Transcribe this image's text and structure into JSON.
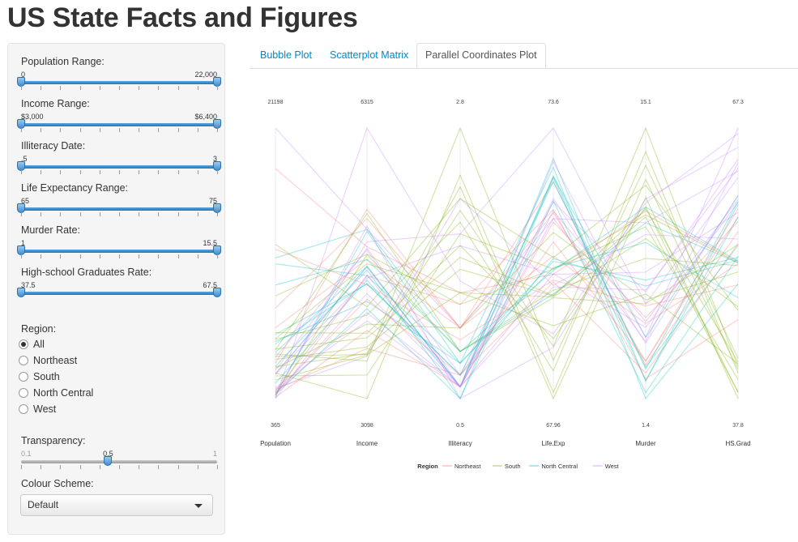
{
  "page_title": "US State Facts and Figures",
  "sidebar": {
    "sliders": [
      {
        "label": "Population Range:",
        "min": "0",
        "max": "22,000"
      },
      {
        "label": "Income Range:",
        "min": "$3,000",
        "max": "$6,400"
      },
      {
        "label": "Illiteracy Date:",
        "min": ".5",
        "max": "3"
      },
      {
        "label": "Life Expectancy Range:",
        "min": "65",
        "max": "75"
      },
      {
        "label": "Murder Rate:",
        "min": "1",
        "max": "15.5"
      },
      {
        "label": "High-school Graduates Rate:",
        "min": "37.5",
        "max": "67.5"
      }
    ],
    "region": {
      "label": "Region:",
      "options": [
        "All",
        "Northeast",
        "South",
        "North Central",
        "West"
      ],
      "selected": "All"
    },
    "transparency": {
      "label": "Transparency:",
      "min": "0.1",
      "value": "0.5",
      "max": "1",
      "fraction": 0.444
    },
    "colour_scheme": {
      "label": "Colour Scheme:",
      "value": "Default"
    }
  },
  "tabs": [
    "Bubble Plot",
    "Scatterplot Matrix",
    "Parallel Coordinates Plot"
  ],
  "active_tab": "Parallel Coordinates Plot",
  "chart_data": {
    "type": "parallel_coordinates",
    "axes": [
      {
        "name": "Population",
        "max": "21198",
        "min": "365"
      },
      {
        "name": "Income",
        "max": "6315",
        "min": "3098"
      },
      {
        "name": "Illiteracy",
        "max": "2.8",
        "min": "0.5"
      },
      {
        "name": "Life.Exp",
        "max": "73.6",
        "min": "67.96"
      },
      {
        "name": "Murder",
        "max": "15.1",
        "min": "1.4"
      },
      {
        "name": "HS.Grad",
        "max": "67.3",
        "min": "37.8"
      }
    ],
    "legend": {
      "title": "Region",
      "entries": [
        {
          "name": "Northeast",
          "color": "#f8766d"
        },
        {
          "name": "South",
          "color": "#7cae00"
        },
        {
          "name": "North Central",
          "color": "#00bfc4"
        },
        {
          "name": "West",
          "color": "#c77cff"
        }
      ]
    },
    "alpha": 0.35,
    "series": [
      {
        "region": "South",
        "values": [
          3615,
          3624,
          2.1,
          69.05,
          15.1,
          41.3
        ]
      },
      {
        "region": "West",
        "values": [
          365,
          6315,
          1.5,
          69.31,
          11.3,
          66.7
        ]
      },
      {
        "region": "West",
        "values": [
          2212,
          4530,
          1.8,
          70.55,
          7.8,
          58.1
        ]
      },
      {
        "region": "South",
        "values": [
          2110,
          3378,
          1.9,
          70.66,
          10.1,
          39.9
        ]
      },
      {
        "region": "West",
        "values": [
          21198,
          5114,
          1.1,
          71.71,
          10.3,
          62.6
        ]
      },
      {
        "region": "West",
        "values": [
          2541,
          4884,
          0.7,
          72.06,
          6.8,
          63.9
        ]
      },
      {
        "region": "Northeast",
        "values": [
          3100,
          5348,
          1.1,
          72.48,
          3.1,
          56.0
        ]
      },
      {
        "region": "South",
        "values": [
          579,
          4809,
          0.9,
          70.06,
          6.2,
          54.6
        ]
      },
      {
        "region": "South",
        "values": [
          8277,
          4815,
          1.3,
          70.66,
          10.7,
          52.6
        ]
      },
      {
        "region": "South",
        "values": [
          4931,
          4091,
          2.0,
          68.54,
          13.9,
          40.6
        ]
      },
      {
        "region": "West",
        "values": [
          868,
          4963,
          1.9,
          73.6,
          6.2,
          61.9
        ]
      },
      {
        "region": "West",
        "values": [
          813,
          4119,
          0.6,
          71.87,
          5.3,
          59.5
        ]
      },
      {
        "region": "North Central",
        "values": [
          11197,
          5107,
          0.9,
          70.14,
          10.3,
          52.6
        ]
      },
      {
        "region": "North Central",
        "values": [
          5313,
          4458,
          0.7,
          70.88,
          7.1,
          52.9
        ]
      },
      {
        "region": "North Central",
        "values": [
          2861,
          4628,
          0.5,
          72.56,
          2.3,
          59.0
        ]
      },
      {
        "region": "North Central",
        "values": [
          2280,
          4669,
          0.6,
          72.58,
          4.5,
          59.9
        ]
      },
      {
        "region": "South",
        "values": [
          3387,
          3712,
          1.6,
          70.1,
          10.6,
          38.5
        ]
      },
      {
        "region": "South",
        "values": [
          3806,
          3545,
          2.8,
          68.76,
          13.2,
          42.2
        ]
      },
      {
        "region": "Northeast",
        "values": [
          1058,
          3694,
          0.7,
          70.39,
          2.7,
          54.7
        ]
      },
      {
        "region": "South",
        "values": [
          4122,
          5299,
          0.9,
          70.22,
          8.5,
          52.3
        ]
      },
      {
        "region": "Northeast",
        "values": [
          5814,
          4755,
          1.1,
          71.83,
          3.3,
          58.5
        ]
      },
      {
        "region": "North Central",
        "values": [
          9111,
          4751,
          0.9,
          70.63,
          11.1,
          52.8
        ]
      },
      {
        "region": "North Central",
        "values": [
          3921,
          4675,
          0.6,
          72.96,
          2.3,
          57.6
        ]
      },
      {
        "region": "South",
        "values": [
          2341,
          3098,
          2.4,
          68.09,
          12.5,
          41.0
        ]
      },
      {
        "region": "North Central",
        "values": [
          4767,
          4254,
          0.8,
          70.69,
          9.3,
          48.8
        ]
      },
      {
        "region": "West",
        "values": [
          746,
          4347,
          0.6,
          70.56,
          5.0,
          59.2
        ]
      },
      {
        "region": "North Central",
        "values": [
          1544,
          4508,
          0.6,
          72.6,
          2.9,
          59.3
        ]
      },
      {
        "region": "West",
        "values": [
          590,
          5149,
          0.5,
          69.03,
          11.5,
          65.2
        ]
      },
      {
        "region": "Northeast",
        "values": [
          812,
          4281,
          0.7,
          71.23,
          3.3,
          57.6
        ]
      },
      {
        "region": "Northeast",
        "values": [
          7333,
          5237,
          1.1,
          70.93,
          5.2,
          52.5
        ]
      },
      {
        "region": "West",
        "values": [
          1144,
          3601,
          2.2,
          70.32,
          9.7,
          55.2
        ]
      },
      {
        "region": "Northeast",
        "values": [
          18076,
          4903,
          1.4,
          70.55,
          10.9,
          52.7
        ]
      },
      {
        "region": "South",
        "values": [
          5441,
          3875,
          1.8,
          69.21,
          11.1,
          38.5
        ]
      },
      {
        "region": "North Central",
        "values": [
          637,
          5087,
          0.8,
          72.78,
          1.4,
          50.3
        ]
      },
      {
        "region": "North Central",
        "values": [
          10735,
          4561,
          0.8,
          70.82,
          7.4,
          53.2
        ]
      },
      {
        "region": "South",
        "values": [
          2715,
          3983,
          1.1,
          71.42,
          6.4,
          51.6
        ]
      },
      {
        "region": "West",
        "values": [
          2284,
          4660,
          0.6,
          72.13,
          4.2,
          60.0
        ]
      },
      {
        "region": "Northeast",
        "values": [
          11860,
          4449,
          1.0,
          70.43,
          6.1,
          50.2
        ]
      },
      {
        "region": "Northeast",
        "values": [
          931,
          4558,
          1.3,
          71.9,
          2.4,
          46.4
        ]
      },
      {
        "region": "South",
        "values": [
          2816,
          3635,
          2.3,
          67.96,
          11.6,
          37.8
        ]
      },
      {
        "region": "North Central",
        "values": [
          681,
          4167,
          0.5,
          72.08,
          1.7,
          53.3
        ]
      },
      {
        "region": "South",
        "values": [
          4173,
          3821,
          1.7,
          70.11,
          11.0,
          41.8
        ]
      },
      {
        "region": "South",
        "values": [
          12237,
          4188,
          2.2,
          70.9,
          12.2,
          47.4
        ]
      },
      {
        "region": "West",
        "values": [
          1203,
          4022,
          0.6,
          72.9,
          4.5,
          67.3
        ]
      },
      {
        "region": "Northeast",
        "values": [
          472,
          3907,
          0.6,
          71.64,
          5.5,
          57.1
        ]
      },
      {
        "region": "South",
        "values": [
          4981,
          4701,
          1.4,
          70.08,
          9.5,
          47.8
        ]
      },
      {
        "region": "West",
        "values": [
          3559,
          4864,
          0.6,
          71.72,
          4.3,
          63.5
        ]
      },
      {
        "region": "South",
        "values": [
          1799,
          3617,
          1.4,
          69.48,
          6.7,
          41.6
        ]
      },
      {
        "region": "North Central",
        "values": [
          4589,
          4468,
          0.7,
          72.48,
          3.0,
          54.5
        ]
      },
      {
        "region": "West",
        "values": [
          376,
          4566,
          0.6,
          70.29,
          6.9,
          62.9
        ]
      }
    ]
  }
}
